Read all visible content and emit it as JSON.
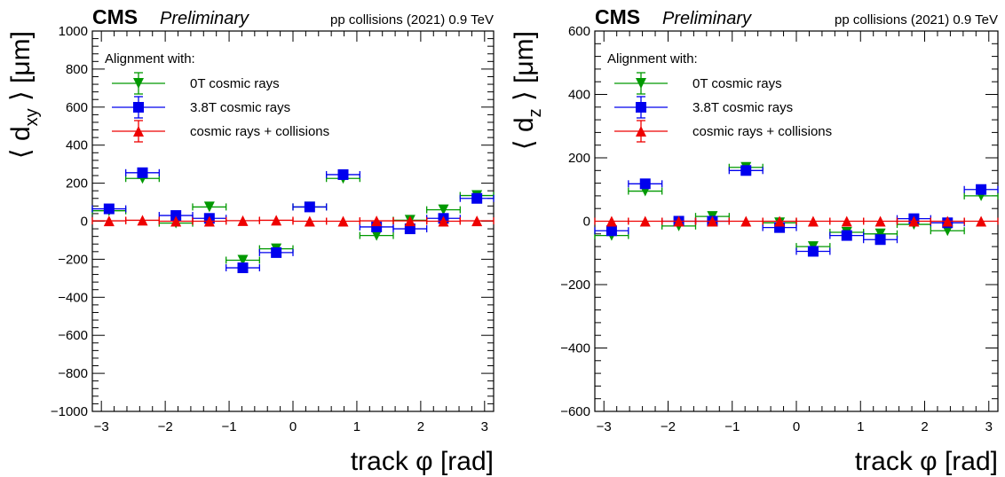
{
  "chart_data": [
    {
      "type": "scatter",
      "header": {
        "experiment": "CMS",
        "status": "Preliminary",
        "conditions": "pp collisions (2021) 0.9 TeV"
      },
      "xlabel": {
        "main": "track ",
        "symbol": "φ",
        "unit": " [rad]"
      },
      "ylabel": {
        "open": "⟨ d",
        "sub": "xy",
        "close": " ⟩ [μm]"
      },
      "xlim": [
        -3.1416,
        3.1416
      ],
      "ylim": [
        -1000,
        1000
      ],
      "x_ticks": [
        -3,
        -2,
        -1,
        0,
        1,
        2,
        3
      ],
      "x_tick_labels": [
        "−3",
        "−2",
        "−1",
        "0",
        "1",
        "2",
        "3"
      ],
      "y_ticks": [
        -1000,
        -800,
        -600,
        -400,
        -200,
        0,
        200,
        400,
        600,
        800,
        1000
      ],
      "y_tick_labels": [
        "−1000",
        "−800",
        "−600",
        "−400",
        "−200",
        "0",
        "200",
        "400",
        "600",
        "800",
        "1000"
      ],
      "x_bin_half_width": 0.2618,
      "grid": false,
      "legend": {
        "title": "Alignment with:",
        "position": "top-left"
      },
      "series": [
        {
          "name": "0T cosmic rays",
          "color": "#009900",
          "marker": "triangle-down",
          "x": [
            -2.8798,
            -2.3562,
            -1.8326,
            -1.309,
            -0.7854,
            -0.2618,
            0.2618,
            0.7854,
            1.309,
            1.8326,
            2.3562,
            2.8798
          ],
          "y": [
            55,
            225,
            -10,
            75,
            -205,
            -145,
            75,
            225,
            -75,
            5,
            60,
            135
          ],
          "yerr": 15
        },
        {
          "name": "3.8T cosmic rays",
          "color": "#0000ee",
          "marker": "square",
          "x": [
            -2.8798,
            -2.3562,
            -1.8326,
            -1.309,
            -0.7854,
            -0.2618,
            0.2618,
            0.7854,
            1.309,
            1.8326,
            2.3562,
            2.8798
          ],
          "y": [
            65,
            255,
            30,
            15,
            -245,
            -165,
            75,
            245,
            -30,
            -40,
            15,
            120
          ],
          "yerr": 15
        },
        {
          "name": "cosmic rays + collisions",
          "color": "#ee0000",
          "marker": "triangle-up",
          "x": [
            -2.8798,
            -2.3562,
            -1.8326,
            -1.309,
            -0.7854,
            -0.2618,
            0.2618,
            0.7854,
            1.309,
            1.8326,
            2.3562,
            2.8798
          ],
          "y": [
            2,
            5,
            0,
            0,
            3,
            5,
            0,
            0,
            2,
            2,
            0,
            2
          ],
          "yerr": 8
        }
      ]
    },
    {
      "type": "scatter",
      "header": {
        "experiment": "CMS",
        "status": "Preliminary",
        "conditions": "pp collisions (2021) 0.9 TeV"
      },
      "xlabel": {
        "main": "track ",
        "symbol": "φ",
        "unit": " [rad]"
      },
      "ylabel": {
        "open": "⟨ d",
        "sub": "z",
        "close": " ⟩ [μm]"
      },
      "xlim": [
        -3.1416,
        3.1416
      ],
      "ylim": [
        -600,
        600
      ],
      "x_ticks": [
        -3,
        -2,
        -1,
        0,
        1,
        2,
        3
      ],
      "x_tick_labels": [
        "−3",
        "−2",
        "−1",
        "0",
        "1",
        "2",
        "3"
      ],
      "y_ticks": [
        -600,
        -400,
        -200,
        0,
        200,
        400,
        600
      ],
      "y_tick_labels": [
        "−600",
        "−400",
        "−200",
        "0",
        "200",
        "400",
        "600"
      ],
      "x_bin_half_width": 0.2618,
      "grid": false,
      "legend": {
        "title": "Alignment with:",
        "position": "top-left"
      },
      "series": [
        {
          "name": "0T cosmic rays",
          "color": "#009900",
          "marker": "triangle-down",
          "x": [
            -2.8798,
            -2.3562,
            -1.8326,
            -1.309,
            -0.7854,
            -0.2618,
            0.2618,
            0.7854,
            1.309,
            1.8326,
            2.3562,
            2.8798
          ],
          "y": [
            -45,
            95,
            -15,
            15,
            170,
            -5,
            -80,
            -35,
            -40,
            -10,
            -30,
            80
          ],
          "yerr": 8
        },
        {
          "name": "3.8T cosmic rays",
          "color": "#0000ee",
          "marker": "square",
          "x": [
            -2.8798,
            -2.3562,
            -1.8326,
            -1.309,
            -0.7854,
            -0.2618,
            0.2618,
            0.7854,
            1.309,
            1.8326,
            2.3562,
            2.8798
          ],
          "y": [
            -30,
            118,
            0,
            0,
            160,
            -20,
            -95,
            -45,
            -58,
            8,
            -5,
            100
          ],
          "yerr": 8
        },
        {
          "name": "cosmic rays + collisions",
          "color": "#ee0000",
          "marker": "triangle-up",
          "x": [
            -2.8798,
            -2.3562,
            -1.8326,
            -1.309,
            -0.7854,
            -0.2618,
            0.2618,
            0.7854,
            1.309,
            1.8326,
            2.3562,
            2.8798
          ],
          "y": [
            0,
            0,
            0,
            0,
            0,
            0,
            0,
            0,
            0,
            0,
            0,
            0
          ],
          "yerr": 5
        }
      ]
    }
  ]
}
